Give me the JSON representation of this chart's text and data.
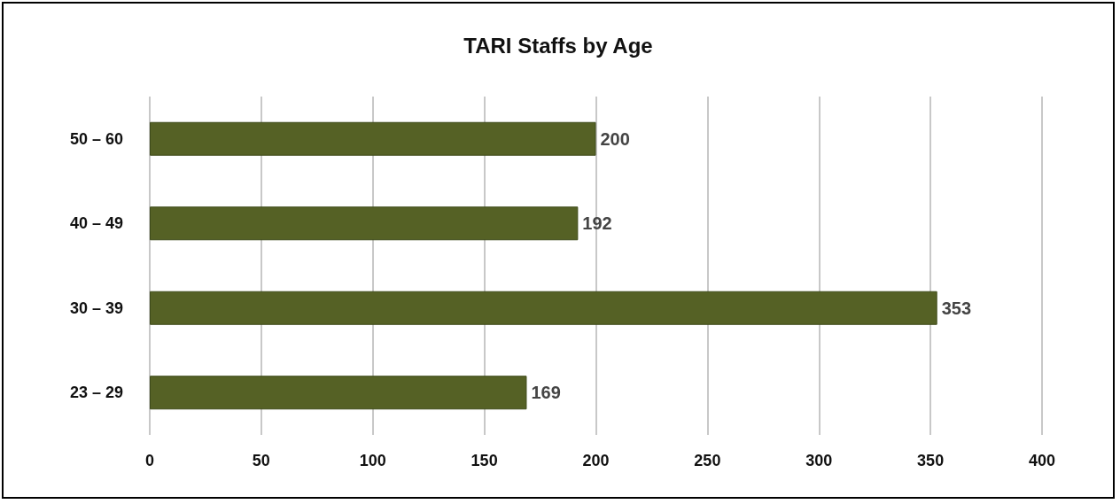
{
  "chart_data": {
    "type": "bar",
    "title": "TARI Staffs by Age",
    "orientation": "horizontal",
    "categories": [
      "50 – 60",
      "40 – 49",
      "30 – 39",
      "23 – 29"
    ],
    "values": [
      200,
      192,
      353,
      169
    ],
    "color": "#556125",
    "xlim": [
      0,
      400
    ],
    "xticks": [
      0,
      50,
      100,
      150,
      200,
      250,
      300,
      350,
      400
    ],
    "grid": "x",
    "data_labels": true
  }
}
